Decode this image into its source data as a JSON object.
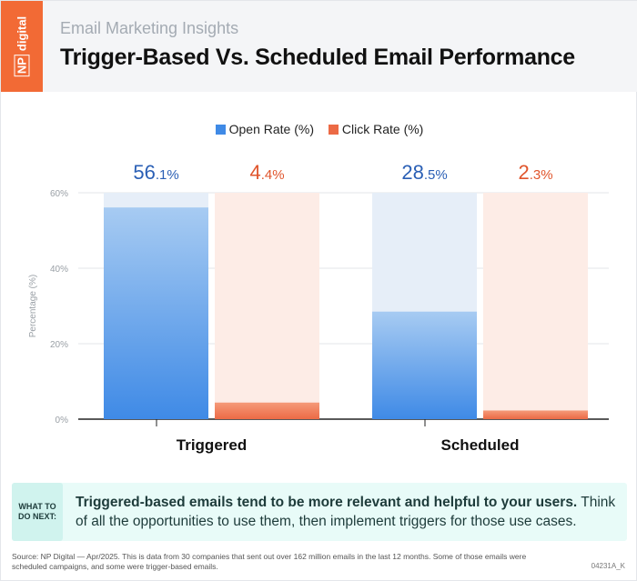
{
  "header": {
    "logo_np": "NP",
    "logo_digital": "digital",
    "subtitle": "Email Marketing Insights",
    "title": "Trigger-Based Vs. Scheduled Email Performance"
  },
  "colors": {
    "brand": "#f26a35",
    "open": "#3f8ae6",
    "click": "#ec6a45",
    "open_bg": "#e6eef8",
    "click_bg": "#fdece6",
    "open_label": "#2a5fb5",
    "click_label": "#e0552c"
  },
  "chart_data": {
    "type": "bar",
    "categories": [
      "Triggered",
      "Scheduled"
    ],
    "series": [
      {
        "name": "Open Rate (%)",
        "values": [
          56.1,
          28.5
        ]
      },
      {
        "name": "Click Rate (%)",
        "values": [
          4.4,
          2.3
        ]
      }
    ],
    "data_labels": [
      [
        "56.1%",
        "28.5%"
      ],
      [
        "4.4%",
        "2.3%"
      ]
    ],
    "ylabel": "Percentage (%)",
    "ylim": [
      0,
      60
    ],
    "yticks": [
      "0%",
      "20%",
      "40%",
      "60%"
    ],
    "grid": true,
    "legend": "top"
  },
  "tip": {
    "label": "WHAT TO DO NEXT:",
    "bold": "Triggered-based emails tend to be more relevant and helpful to your users.",
    "rest": " Think of all the opportunities to use them, then implement triggers for those use cases."
  },
  "footer": {
    "source": "Source:  NP Digital — Apr/2025. This is data from 30 companies that sent out over 162 million emails in the last 12 months. Some of those emails were scheduled campaigns, and some were trigger-based emails.",
    "code": "04231A_K"
  }
}
